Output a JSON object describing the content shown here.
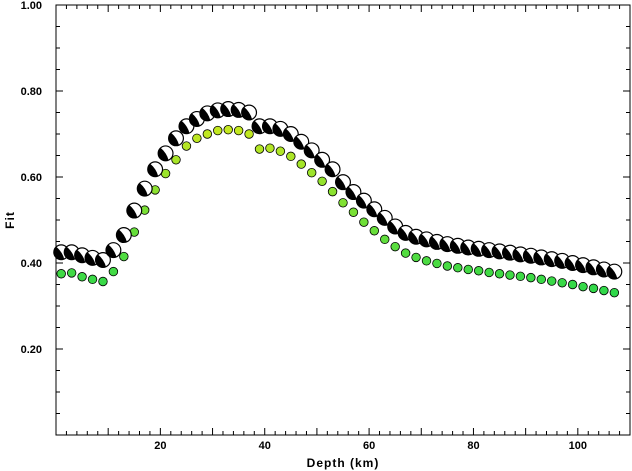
{
  "chart_data": {
    "type": "scatter",
    "title": "",
    "xlabel": "Depth (km)",
    "ylabel": "Fit",
    "xlim": [
      0,
      110
    ],
    "ylim": [
      0.0,
      1.0
    ],
    "x_ticks": [
      20,
      40,
      60,
      80,
      100
    ],
    "y_ticks": [
      0.2,
      0.4,
      0.6,
      0.8,
      1.0
    ],
    "y_tick_labels": [
      "0.20",
      "0.40",
      "0.60",
      "0.80",
      "1.00"
    ],
    "grid": false,
    "legend": "none",
    "series": [
      {
        "marker": "focal-mechanism-beachball",
        "color": "#000000",
        "x": [
          1,
          3,
          5,
          7,
          9,
          11,
          13,
          15,
          17,
          19,
          21,
          23,
          25,
          27,
          29,
          31,
          33,
          35,
          37,
          39,
          41,
          43,
          45,
          47,
          49,
          51,
          53,
          55,
          57,
          59,
          61,
          63,
          65,
          67,
          69,
          71,
          73,
          75,
          77,
          79,
          81,
          83,
          85,
          87,
          89,
          91,
          93,
          95,
          97,
          99,
          101,
          103,
          105,
          107
        ],
        "y": [
          0.425,
          0.425,
          0.418,
          0.412,
          0.407,
          0.43,
          0.465,
          0.522,
          0.573,
          0.618,
          0.655,
          0.69,
          0.718,
          0.735,
          0.748,
          0.755,
          0.758,
          0.756,
          0.75,
          0.718,
          0.718,
          0.712,
          0.7,
          0.682,
          0.662,
          0.64,
          0.618,
          0.588,
          0.565,
          0.545,
          0.525,
          0.505,
          0.485,
          0.47,
          0.461,
          0.455,
          0.449,
          0.444,
          0.44,
          0.436,
          0.433,
          0.43,
          0.427,
          0.424,
          0.42,
          0.417,
          0.413,
          0.409,
          0.405,
          0.4,
          0.395,
          0.39,
          0.385,
          0.38
        ]
      },
      {
        "marker": "circle",
        "color_scale": [
          "#2fd84a",
          "#c4e820"
        ],
        "x": [
          1,
          3,
          5,
          7,
          9,
          11,
          13,
          15,
          17,
          19,
          21,
          23,
          25,
          27,
          29,
          31,
          33,
          35,
          37,
          39,
          41,
          43,
          45,
          47,
          49,
          51,
          53,
          55,
          57,
          59,
          61,
          63,
          65,
          67,
          69,
          71,
          73,
          75,
          77,
          79,
          81,
          83,
          85,
          87,
          89,
          91,
          93,
          95,
          97,
          99,
          101,
          103,
          105,
          107
        ],
        "y": [
          0.375,
          0.377,
          0.368,
          0.362,
          0.357,
          0.38,
          0.415,
          0.472,
          0.523,
          0.57,
          0.608,
          0.64,
          0.672,
          0.69,
          0.7,
          0.708,
          0.71,
          0.708,
          0.7,
          0.665,
          0.667,
          0.66,
          0.648,
          0.63,
          0.61,
          0.59,
          0.566,
          0.54,
          0.518,
          0.495,
          0.475,
          0.455,
          0.438,
          0.423,
          0.413,
          0.405,
          0.399,
          0.393,
          0.389,
          0.385,
          0.382,
          0.378,
          0.375,
          0.372,
          0.369,
          0.366,
          0.362,
          0.358,
          0.354,
          0.35,
          0.345,
          0.341,
          0.336,
          0.331
        ]
      }
    ]
  }
}
